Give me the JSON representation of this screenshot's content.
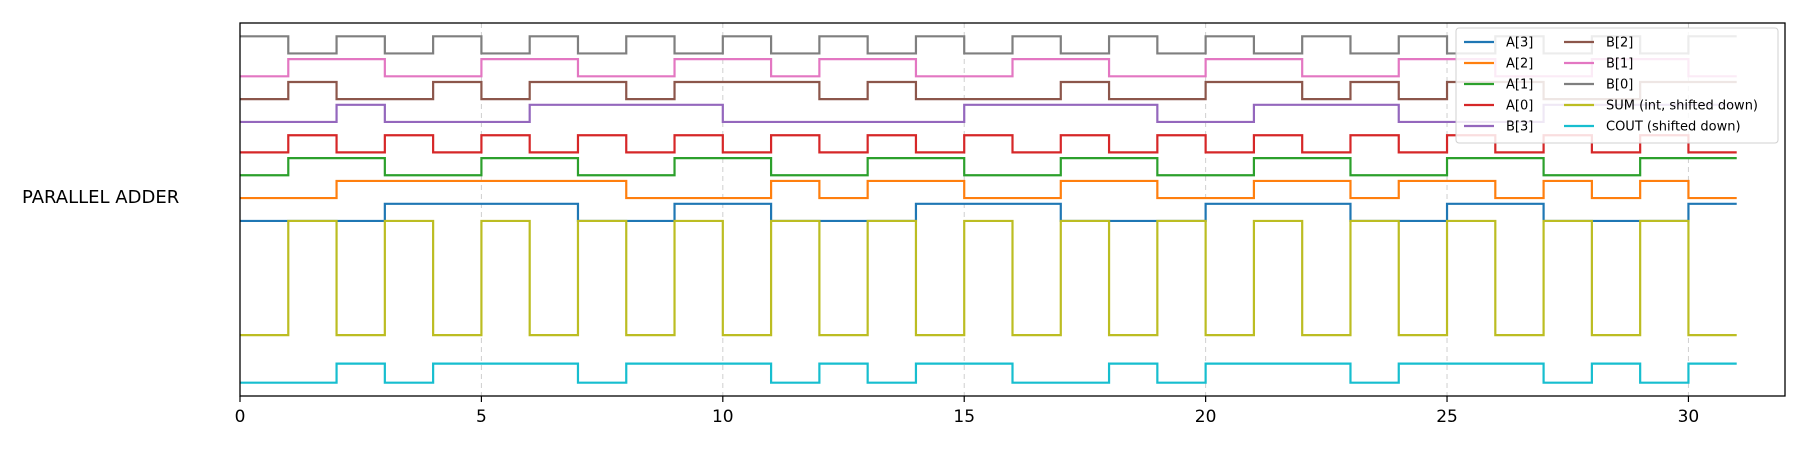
{
  "chart_data": {
    "type": "line",
    "step": "post",
    "ylabel": "PARALLEL ADDER",
    "xlim": [
      0,
      32
    ],
    "xticks": [
      0,
      5,
      10,
      15,
      20,
      25,
      30
    ],
    "grid_x": true,
    "legend_position": "top-right",
    "legend_columns": 2,
    "series": [
      {
        "name": "A[3]",
        "color": "#1f77b4",
        "offset": 8.0,
        "amplitude": 0.9,
        "values": [
          0,
          0,
          0,
          1,
          1,
          1,
          1,
          0,
          0,
          1,
          1,
          0,
          0,
          0,
          1,
          1,
          1,
          0,
          0,
          0,
          1,
          1,
          1,
          0,
          0,
          1,
          1,
          0,
          0,
          0,
          1,
          1
        ]
      },
      {
        "name": "A[2]",
        "color": "#ff7f0e",
        "offset": 9.2,
        "amplitude": 0.9,
        "values": [
          0,
          0,
          1,
          1,
          1,
          1,
          1,
          1,
          0,
          0,
          0,
          1,
          0,
          1,
          1,
          0,
          0,
          1,
          1,
          0,
          0,
          1,
          1,
          0,
          1,
          1,
          0,
          1,
          0,
          1,
          0,
          0
        ]
      },
      {
        "name": "A[1]",
        "color": "#2ca02c",
        "offset": 10.4,
        "amplitude": 0.9,
        "values": [
          0,
          1,
          1,
          0,
          0,
          1,
          1,
          0,
          0,
          1,
          1,
          0,
          0,
          1,
          1,
          0,
          0,
          1,
          1,
          0,
          0,
          1,
          1,
          0,
          0,
          1,
          1,
          0,
          0,
          1,
          1,
          1
        ]
      },
      {
        "name": "A[0]",
        "color": "#d62728",
        "offset": 11.6,
        "amplitude": 0.9,
        "values": [
          0,
          1,
          0,
          1,
          0,
          1,
          0,
          1,
          0,
          1,
          0,
          1,
          0,
          1,
          0,
          1,
          0,
          1,
          0,
          1,
          0,
          1,
          0,
          1,
          0,
          1,
          0,
          1,
          0,
          1,
          0,
          0
        ]
      },
      {
        "name": "B[3]",
        "color": "#9467bd",
        "offset": 13.2,
        "amplitude": 0.9,
        "values": [
          0,
          0,
          1,
          0,
          0,
          0,
          1,
          1,
          1,
          1,
          0,
          0,
          0,
          0,
          0,
          1,
          1,
          1,
          1,
          0,
          0,
          1,
          1,
          1,
          0,
          0,
          0,
          1,
          1,
          1,
          1,
          1
        ]
      },
      {
        "name": "B[2]",
        "color": "#8c564b",
        "offset": 14.4,
        "amplitude": 0.9,
        "values": [
          0,
          1,
          0,
          0,
          1,
          0,
          1,
          1,
          0,
          1,
          1,
          1,
          0,
          1,
          0,
          0,
          0,
          1,
          0,
          0,
          1,
          1,
          0,
          1,
          0,
          1,
          1,
          0,
          0,
          1,
          1,
          1
        ]
      },
      {
        "name": "B[1]",
        "color": "#e377c2",
        "offset": 15.6,
        "amplitude": 0.9,
        "values": [
          0,
          1,
          1,
          0,
          0,
          1,
          1,
          0,
          0,
          1,
          1,
          0,
          1,
          1,
          0,
          0,
          1,
          1,
          0,
          0,
          1,
          1,
          0,
          0,
          1,
          1,
          0,
          0,
          1,
          1,
          0,
          0
        ]
      },
      {
        "name": "B[0]",
        "color": "#7f7f7f",
        "offset": 16.8,
        "amplitude": 0.9,
        "values": [
          1,
          0,
          1,
          0,
          1,
          0,
          1,
          0,
          1,
          0,
          1,
          0,
          1,
          0,
          1,
          0,
          1,
          0,
          1,
          0,
          1,
          0,
          1,
          0,
          1,
          0,
          1,
          0,
          1,
          0,
          1,
          1
        ]
      },
      {
        "name": "SUM (int, shifted down)",
        "color": "#bcbd22",
        "offset": 2.0,
        "amplitude": 0.4,
        "values": [
          0,
          15,
          0,
          15,
          0,
          15,
          0,
          15,
          0,
          15,
          0,
          15,
          0,
          15,
          0,
          15,
          0,
          15,
          0,
          15,
          0,
          15,
          0,
          15,
          0,
          15,
          0,
          15,
          0,
          15,
          0,
          0
        ]
      },
      {
        "name": "COUT (shifted down)",
        "color": "#17becf",
        "offset": -0.5,
        "amplitude": 1.0,
        "values": [
          0,
          0,
          1,
          0,
          1,
          1,
          1,
          0,
          1,
          1,
          1,
          0,
          1,
          0,
          1,
          1,
          0,
          0,
          1,
          0,
          1,
          1,
          1,
          0,
          1,
          1,
          1,
          0,
          1,
          0,
          1,
          1
        ]
      }
    ]
  }
}
